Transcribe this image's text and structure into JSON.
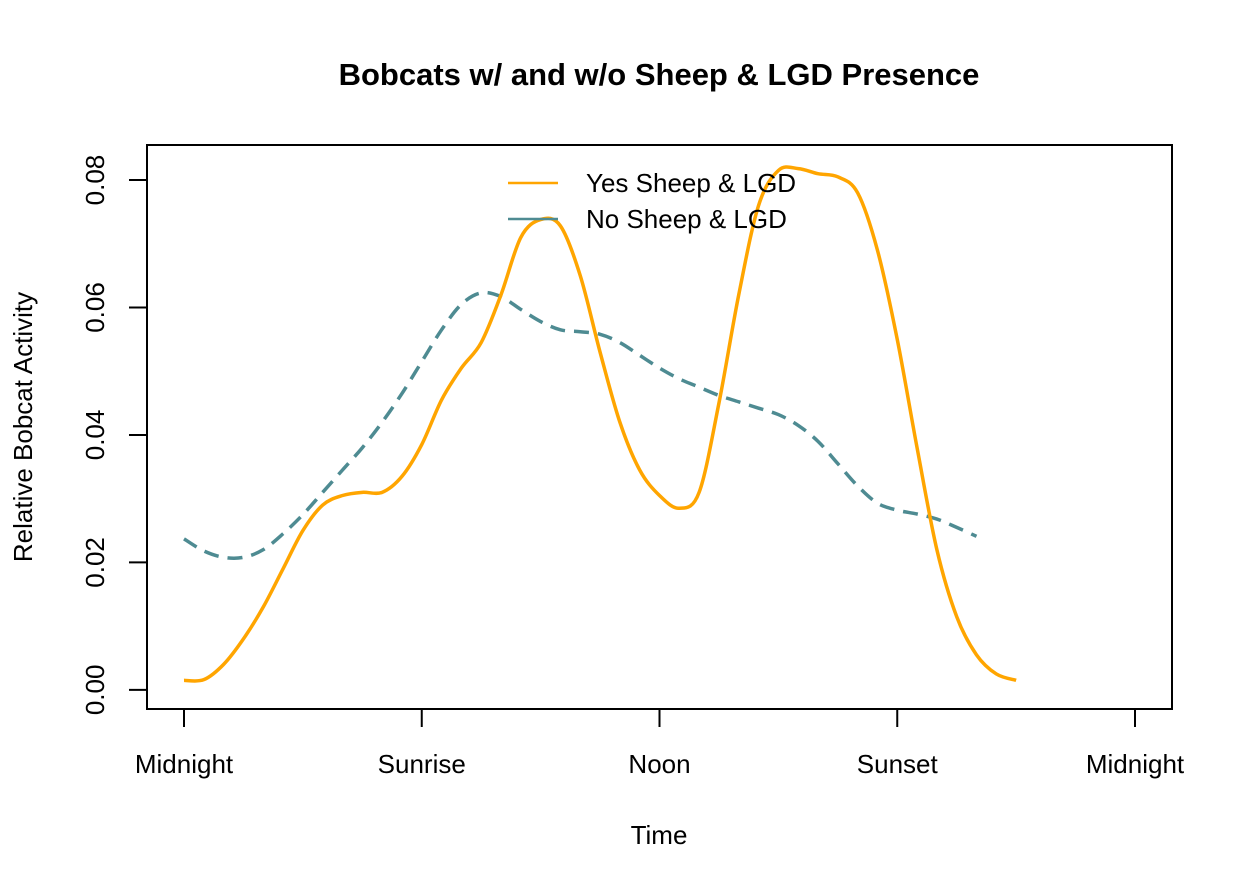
{
  "chart_data": {
    "type": "line",
    "title": "Bobcats w/ and w/o Sheep & LGD Presence",
    "xlabel": "Time",
    "ylabel": "Relative Bobcat Activity",
    "xlim": [
      0,
      24
    ],
    "ylim": [
      -0.003,
      0.0855
    ],
    "x_ticks": [
      {
        "x": 0,
        "label": "Midnight"
      },
      {
        "x": 6,
        "label": "Sunrise"
      },
      {
        "x": 12,
        "label": "Noon"
      },
      {
        "x": 18,
        "label": "Sunset"
      },
      {
        "x": 24,
        "label": "Midnight"
      }
    ],
    "y_ticks": [
      {
        "y": 0.0,
        "label": "0.00"
      },
      {
        "y": 0.02,
        "label": "0.02"
      },
      {
        "y": 0.04,
        "label": "0.04"
      },
      {
        "y": 0.06,
        "label": "0.06"
      },
      {
        "y": 0.08,
        "label": "0.08"
      }
    ],
    "grid": false,
    "legend_position": "top-center",
    "series": [
      {
        "name": "Yes Sheep & LGD",
        "color": "#FFA500",
        "dash": "solid",
        "points": [
          [
            0,
            0.0015
          ],
          [
            0.5,
            0.0016
          ],
          [
            1,
            0.004
          ],
          [
            1.5,
            0.008
          ],
          [
            2,
            0.013
          ],
          [
            2.5,
            0.019
          ],
          [
            3,
            0.025
          ],
          [
            3.5,
            0.029
          ],
          [
            4,
            0.0305
          ],
          [
            4.5,
            0.031
          ],
          [
            5,
            0.031
          ],
          [
            5.5,
            0.0335
          ],
          [
            6,
            0.0385
          ],
          [
            6.5,
            0.0455
          ],
          [
            7,
            0.0505
          ],
          [
            7.5,
            0.0545
          ],
          [
            8,
            0.062
          ],
          [
            8.5,
            0.071
          ],
          [
            9,
            0.0738
          ],
          [
            9.5,
            0.0728
          ],
          [
            10,
            0.065
          ],
          [
            10.5,
            0.053
          ],
          [
            11,
            0.042
          ],
          [
            11.5,
            0.0345
          ],
          [
            12,
            0.0305
          ],
          [
            12.5,
            0.0285
          ],
          [
            13,
            0.031
          ],
          [
            13.5,
            0.045
          ],
          [
            14,
            0.062
          ],
          [
            14.5,
            0.076
          ],
          [
            15,
            0.0815
          ],
          [
            15.5,
            0.0818
          ],
          [
            16,
            0.081
          ],
          [
            16.5,
            0.0805
          ],
          [
            17,
            0.078
          ],
          [
            17.5,
            0.069
          ],
          [
            18,
            0.055
          ],
          [
            18.5,
            0.038
          ],
          [
            19,
            0.022
          ],
          [
            19.5,
            0.0115
          ],
          [
            20,
            0.0055
          ],
          [
            20.5,
            0.0025
          ],
          [
            21,
            0.0015
          ]
        ]
      },
      {
        "name": "No Sheep & LGD",
        "color": "#4E8B92",
        "dash": "dashed",
        "points": [
          [
            0,
            0.0237
          ],
          [
            0.5,
            0.0218
          ],
          [
            1,
            0.0208
          ],
          [
            1.5,
            0.0208
          ],
          [
            2,
            0.022
          ],
          [
            2.5,
            0.0245
          ],
          [
            3,
            0.0275
          ],
          [
            3.5,
            0.031
          ],
          [
            4,
            0.0345
          ],
          [
            4.5,
            0.038
          ],
          [
            5,
            0.042
          ],
          [
            5.5,
            0.0465
          ],
          [
            6,
            0.0515
          ],
          [
            6.5,
            0.0565
          ],
          [
            7,
            0.0605
          ],
          [
            7.5,
            0.0623
          ],
          [
            8,
            0.0617
          ],
          [
            8.5,
            0.0597
          ],
          [
            9,
            0.0578
          ],
          [
            9.5,
            0.0565
          ],
          [
            10,
            0.0562
          ],
          [
            10.5,
            0.0558
          ],
          [
            11,
            0.0545
          ],
          [
            11.5,
            0.0525
          ],
          [
            12,
            0.0505
          ],
          [
            12.5,
            0.0488
          ],
          [
            13,
            0.0475
          ],
          [
            13.5,
            0.0462
          ],
          [
            14,
            0.0452
          ],
          [
            14.5,
            0.0442
          ],
          [
            15,
            0.0432
          ],
          [
            15.5,
            0.0415
          ],
          [
            16,
            0.039
          ],
          [
            16.5,
            0.0355
          ],
          [
            17,
            0.032
          ],
          [
            17.5,
            0.0293
          ],
          [
            18,
            0.0282
          ],
          [
            18.5,
            0.0276
          ],
          [
            19,
            0.0268
          ],
          [
            19.5,
            0.0255
          ],
          [
            20,
            0.0241
          ]
        ]
      }
    ]
  }
}
